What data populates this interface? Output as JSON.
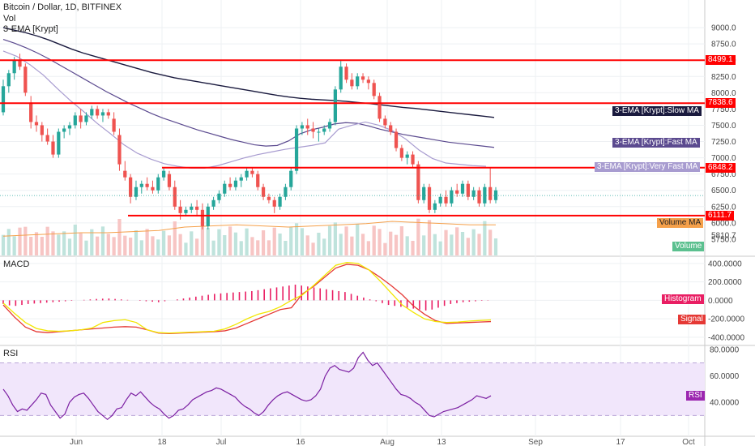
{
  "header": {
    "symbol": "Bitcoin / Dollar, 1D, BITFINEX",
    "vol": "Vol",
    "ema": "3-EMA [Krypt]"
  },
  "panes": {
    "macd_title": "MACD",
    "rsi_title": "RSI"
  },
  "colors": {
    "up": "#26a69a",
    "down": "#ef5350",
    "level": "#ff0000",
    "slow_ma": "#1a1a3e",
    "fast_ma": "#5b4a8f",
    "very_fast_ma": "#a89cd0",
    "macd": "#e53935",
    "signal": "#f2e600",
    "rsi": "#7b1fa2",
    "rsi_band": "#f1e6fb"
  },
  "chart_data": [
    {
      "type": "candlestick",
      "title": "Bitcoin / Dollar, 1D, BITFINEX",
      "ylim": [
        5500,
        9300
      ],
      "yticks": [
        "9000.0",
        "8750.0",
        "8500.0",
        "8250.0",
        "8000.0",
        "7750.0",
        "7500.0",
        "7250.0",
        "7000.0",
        "6750.0",
        "6500.0",
        "6250.0",
        "6000.0",
        "5810.7",
        "5750.0"
      ],
      "x_labels": [
        "Jun",
        "18",
        "Jul",
        "16",
        "Aug",
        "13",
        "Sep",
        "17",
        "Oct"
      ],
      "series": [
        {
          "name": "3-EMA [Krypt]:Slow MA",
          "values": [
            9000,
            8960,
            8920,
            8870,
            8810,
            8740,
            8670,
            8610,
            8560,
            8510,
            8460,
            8410,
            8360,
            8310,
            8270,
            8230,
            8200,
            8170,
            8140,
            8110,
            8080,
            8050,
            8020,
            7990,
            7960,
            7935,
            7915,
            7900,
            7890,
            7880,
            7868,
            7850,
            7835,
            7815,
            7795,
            7775,
            7760,
            7740,
            7720,
            7700,
            7680,
            7660,
            7640,
            7620
          ]
        },
        {
          "name": "3-EMA [Krypt]:Fast MA",
          "values": [
            8820,
            8760,
            8690,
            8610,
            8520,
            8420,
            8320,
            8220,
            8120,
            8020,
            7930,
            7840,
            7760,
            7680,
            7610,
            7550,
            7490,
            7430,
            7380,
            7330,
            7280,
            7240,
            7200,
            7180,
            7190,
            7260,
            7370,
            7430,
            7470,
            7520,
            7540,
            7530,
            7490,
            7440,
            7400,
            7360,
            7330,
            7300,
            7270,
            7240,
            7220,
            7200,
            7180,
            7160
          ]
        },
        {
          "name": "3-EMA [Krypt]:Very Fast MA",
          "values": [
            8640,
            8560,
            8430,
            8270,
            8070,
            7880,
            7710,
            7530,
            7370,
            7200,
            7070,
            6980,
            6910,
            6870,
            6840,
            6840,
            6880,
            6940,
            7000,
            7050,
            7090,
            7130,
            7160,
            7190,
            7230,
            7440,
            7500,
            7550,
            7500,
            7420,
            7290,
            7120,
            6990,
            6920,
            6900,
            6880,
            6870
          ]
        }
      ],
      "levels": [
        {
          "value": 8499.1,
          "label": "8499.1"
        },
        {
          "value": 7838.6,
          "label": "7838.6"
        },
        {
          "value": 6848.2,
          "label": "6848.2"
        },
        {
          "value": 6111.7,
          "label": "6111.7"
        }
      ],
      "last_price": 6420,
      "annotations": [
        "3-EMA [Krypt]:Slow MA",
        "3-EMA [Krypt]:Fast MA",
        "3-EMA [Krypt]:Very Fast MA",
        "Volume MA",
        "Volume"
      ],
      "candles": [
        [
          7700,
          8200,
          7650,
          8100
        ],
        [
          8100,
          8350,
          8000,
          8300
        ],
        [
          8300,
          8550,
          8200,
          8500
        ],
        [
          8500,
          8600,
          8350,
          8400
        ],
        [
          8400,
          8450,
          7950,
          8000
        ],
        [
          7850,
          7950,
          7450,
          7550
        ],
        [
          7550,
          7650,
          7400,
          7500
        ],
        [
          7500,
          7550,
          7250,
          7350
        ],
        [
          7350,
          7450,
          7200,
          7250
        ],
        [
          7250,
          7350,
          7000,
          7050
        ],
        [
          7050,
          7450,
          7000,
          7400
        ],
        [
          7400,
          7500,
          7300,
          7450
        ],
        [
          7450,
          7550,
          7350,
          7500
        ],
        [
          7500,
          7700,
          7450,
          7650
        ],
        [
          7650,
          7750,
          7450,
          7550
        ],
        [
          7550,
          7700,
          7500,
          7650
        ],
        [
          7650,
          7800,
          7600,
          7750
        ],
        [
          7750,
          7800,
          7600,
          7650
        ],
        [
          7650,
          7750,
          7550,
          7700
        ],
        [
          7700,
          7750,
          7600,
          7650
        ],
        [
          7600,
          7700,
          7350,
          7400
        ],
        [
          7350,
          7450,
          6800,
          6900
        ],
        [
          6800,
          6950,
          6650,
          6700
        ],
        [
          6700,
          6750,
          6300,
          6400
        ],
        [
          6400,
          6650,
          6350,
          6550
        ],
        [
          6550,
          6650,
          6450,
          6600
        ],
        [
          6600,
          6700,
          6500,
          6550
        ],
        [
          6550,
          6650,
          6450,
          6500
        ],
        [
          6500,
          6750,
          6450,
          6700
        ],
        [
          6700,
          6850,
          6650,
          6800
        ],
        [
          6750,
          6800,
          6500,
          6550
        ],
        [
          6550,
          6650,
          6200,
          6250
        ],
        [
          6250,
          6350,
          6050,
          6150
        ],
        [
          6150,
          6250,
          6100,
          6200
        ],
        [
          6200,
          6300,
          6150,
          6250
        ],
        [
          6250,
          6350,
          6100,
          6200
        ],
        [
          6200,
          6300,
          5900,
          5950
        ],
        [
          5950,
          6300,
          5900,
          6250
        ],
        [
          6250,
          6400,
          6200,
          6350
        ],
        [
          6350,
          6500,
          6300,
          6450
        ],
        [
          6450,
          6650,
          6400,
          6600
        ],
        [
          6600,
          6700,
          6500,
          6550
        ],
        [
          6550,
          6700,
          6500,
          6650
        ],
        [
          6650,
          6750,
          6550,
          6700
        ],
        [
          6700,
          6850,
          6650,
          6800
        ],
        [
          6800,
          6850,
          6700,
          6750
        ],
        [
          6750,
          6800,
          6500,
          6550
        ],
        [
          6550,
          6600,
          6350,
          6400
        ],
        [
          6400,
          6450,
          6300,
          6350
        ],
        [
          6350,
          6400,
          6150,
          6250
        ],
        [
          6250,
          6450,
          6200,
          6400
        ],
        [
          6400,
          6600,
          6350,
          6550
        ],
        [
          6550,
          6850,
          6500,
          6800
        ],
        [
          6800,
          7500,
          6750,
          7450
        ],
        [
          7450,
          7550,
          7350,
          7500
        ],
        [
          7500,
          7600,
          7350,
          7450
        ],
        [
          7450,
          7550,
          7300,
          7400
        ],
        [
          7400,
          7450,
          7250,
          7400
        ],
        [
          7400,
          7500,
          7350,
          7450
        ],
        [
          7450,
          7600,
          7400,
          7550
        ],
        [
          7550,
          8100,
          7500,
          8050
        ],
        [
          8050,
          8500,
          8000,
          8400
        ],
        [
          8400,
          8450,
          8150,
          8200
        ],
        [
          8200,
          8300,
          8050,
          8100
        ],
        [
          8100,
          8300,
          8050,
          8250
        ],
        [
          8250,
          8300,
          8150,
          8200
        ],
        [
          8200,
          8250,
          8050,
          8150
        ],
        [
          8150,
          8200,
          7900,
          7950
        ],
        [
          7950,
          8000,
          7550,
          7600
        ],
        [
          7600,
          7650,
          7450,
          7500
        ],
        [
          7500,
          7550,
          7350,
          7400
        ],
        [
          7400,
          7450,
          7100,
          7150
        ],
        [
          7150,
          7200,
          6950,
          7000
        ],
        [
          7000,
          7100,
          6900,
          7050
        ],
        [
          7050,
          7100,
          6850,
          6900
        ],
        [
          6900,
          6950,
          6300,
          6350
        ],
        [
          6350,
          6600,
          6300,
          6550
        ],
        [
          6550,
          6600,
          6150,
          6200
        ],
        [
          6200,
          6350,
          6150,
          6300
        ],
        [
          6300,
          6450,
          6250,
          6400
        ],
        [
          6400,
          6500,
          6250,
          6300
        ],
        [
          6300,
          6550,
          6250,
          6500
        ],
        [
          6500,
          6600,
          6400,
          6450
        ],
        [
          6450,
          6650,
          6400,
          6600
        ],
        [
          6600,
          6650,
          6350,
          6400
        ],
        [
          6400,
          6550,
          6350,
          6500
        ],
        [
          6500,
          6550,
          6250,
          6300
        ],
        [
          6300,
          6600,
          6250,
          6550
        ],
        [
          6550,
          6850,
          6300,
          6350
        ],
        [
          6350,
          6550,
          6300,
          6500
        ]
      ],
      "volume_ma": [
        0.17,
        0.18,
        0.19,
        0.2,
        0.2,
        0.21,
        0.22,
        0.25,
        0.26,
        0.27,
        0.26,
        0.25,
        0.26,
        0.27,
        0.28,
        0.3,
        0.29,
        0.28,
        0.27,
        0.27
      ]
    },
    {
      "type": "line",
      "title": "MACD",
      "ylim": [
        -480,
        460
      ],
      "yticks": [
        "400.0000",
        "200.0000",
        "0.0000",
        "-200.0000",
        "-400.0000"
      ],
      "series": [
        {
          "name": "MACD",
          "values": [
            -50,
            -180,
            -290,
            -340,
            -350,
            -340,
            -330,
            -320,
            -310,
            -300,
            -290,
            -285,
            -290,
            -320,
            -355,
            -360,
            -355,
            -350,
            -345,
            -340,
            -330,
            -300,
            -250,
            -200,
            -150,
            -100,
            -80,
            70,
            150,
            250,
            350,
            390,
            380,
            330,
            250,
            160,
            60,
            -60,
            -150,
            -220,
            -250,
            -245,
            -240,
            -235,
            -230
          ]
        },
        {
          "name": "Signal",
          "values": [
            -30,
            -140,
            -240,
            -305,
            -330,
            -335,
            -330,
            -320,
            -300,
            -240,
            -220,
            -210,
            -240,
            -320,
            -350,
            -355,
            -350,
            -345,
            -340,
            -335,
            -310,
            -260,
            -200,
            -150,
            -120,
            -70,
            0,
            60,
            160,
            270,
            380,
            410,
            400,
            330,
            210,
            80,
            -50,
            -130,
            -200,
            -230,
            -240,
            -235,
            -225,
            -218,
            -212
          ]
        }
      ],
      "histogram": [
        -40,
        -55,
        -60,
        -50,
        -40,
        -35,
        -30,
        -25,
        -20,
        -15,
        -10,
        -5,
        0,
        5,
        10,
        15,
        18,
        20,
        15,
        10,
        5,
        0,
        -5,
        -10,
        -15,
        -20,
        -10,
        0,
        10,
        20,
        30,
        40,
        50,
        60,
        70,
        75,
        80,
        85,
        90,
        95,
        100,
        110,
        120,
        130,
        140,
        150,
        160,
        170,
        160,
        150,
        140,
        130,
        120,
        110,
        100,
        90,
        70,
        50,
        30,
        10,
        -10,
        -30,
        -50,
        -60,
        -70,
        -80,
        -90,
        -100,
        -110,
        -100,
        -80,
        -60,
        -40,
        -30,
        -20,
        -15,
        -10,
        -5,
        -3,
        0
      ],
      "annotations": [
        "Histogram",
        "Signal"
      ]
    },
    {
      "type": "line",
      "title": "RSI",
      "ylim": [
        13,
        82
      ],
      "yticks": [
        "80.0000",
        "60.0000",
        "40.0000"
      ],
      "band": [
        30,
        70
      ],
      "series": [
        {
          "name": "RSI",
          "values": [
            50,
            45,
            38,
            33,
            35,
            34,
            38,
            42,
            47,
            46,
            38,
            33,
            28,
            31,
            40,
            44,
            46,
            47,
            43,
            38,
            33,
            30,
            27,
            30,
            35,
            36,
            42,
            47,
            45,
            48,
            44,
            40,
            37,
            35,
            31,
            28,
            30,
            34,
            35,
            38,
            42,
            44,
            46,
            48,
            49,
            51,
            50,
            48,
            46,
            44,
            40,
            37,
            35,
            32,
            30,
            33,
            38,
            42,
            45,
            47,
            48,
            46,
            44,
            42,
            41,
            42,
            45,
            50,
            60,
            66,
            68,
            65,
            64,
            63,
            66,
            74,
            78,
            72,
            68,
            70,
            65,
            60,
            55,
            50,
            46,
            45,
            43,
            40,
            38,
            34,
            30,
            29,
            31,
            33,
            34,
            35,
            36,
            38,
            40,
            42,
            45,
            44,
            43,
            45
          ]
        }
      ],
      "annotations": [
        "RSI"
      ]
    }
  ]
}
